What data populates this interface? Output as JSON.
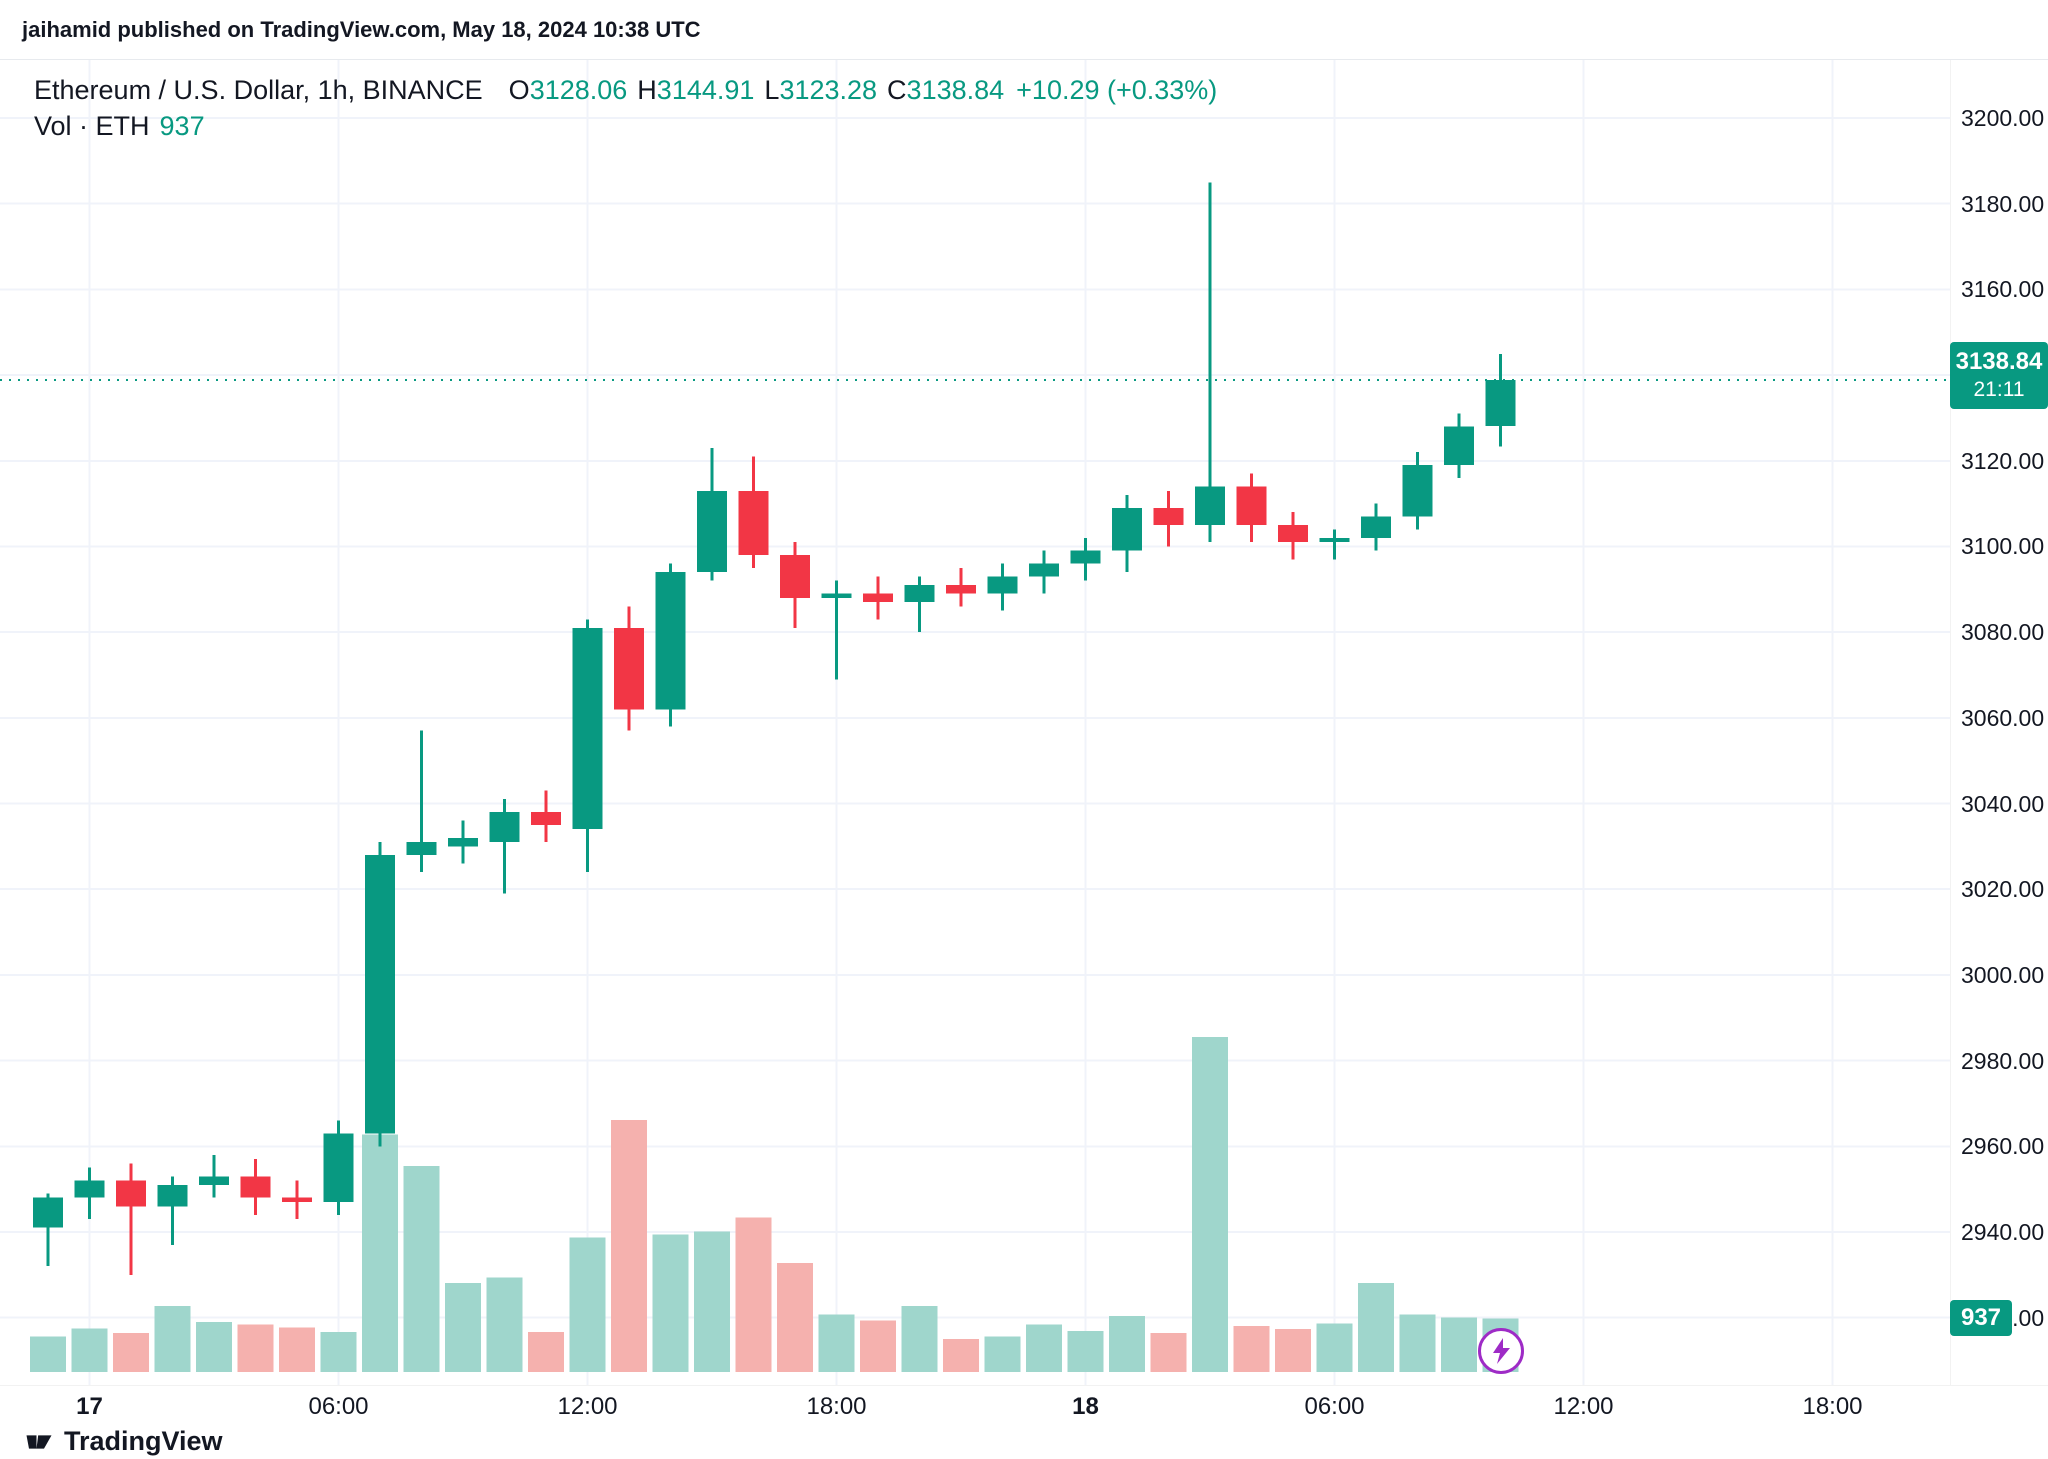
{
  "attribution": {
    "text": "jaihamid published on TradingView.com, May 18, 2024 10:38 UTC"
  },
  "legend": {
    "symbol": "Ethereum / U.S. Dollar, 1h, BINANCE",
    "o_label": "O",
    "o_value": "3128.06",
    "h_label": "H",
    "h_value": "3144.91",
    "l_label": "L",
    "l_value": "3123.28",
    "c_label": "C",
    "c_value": "3138.84",
    "change": "+10.29 (+0.33%)",
    "vol_label": "Vol · ETH",
    "vol_value": "937"
  },
  "price_badge": {
    "price": "3138.84",
    "countdown": "21:11"
  },
  "volume_badge": {
    "value": "937"
  },
  "footer": {
    "brand": "TradingView"
  },
  "colors": {
    "up": "#089981",
    "down": "#f23645",
    "vol_up": "#9fd6cc",
    "vol_down": "#f5b1ae",
    "grid": "#f0f3fa",
    "axis_text": "#131722",
    "badge_bg": "#089981",
    "flash": "#9e2bc6"
  },
  "chart_data": {
    "type": "candlestick",
    "title": "Ethereum / U.S. Dollar, 1h, BINANCE",
    "exchange": "BINANCE",
    "interval": "1h",
    "current_price": 3138.84,
    "current_volume": 937,
    "countdown": "21:11",
    "legend_position": "top-left",
    "grid": true,
    "y_axis": {
      "side": "right",
      "tick_step": 20,
      "ticks": [
        "3200.00",
        "3180.00",
        "3160.00",
        "3140.00",
        "3120.00",
        "3100.00",
        "3080.00",
        "3060.00",
        "3040.00",
        "3020.00",
        "3000.00",
        "2980.00",
        "2960.00",
        "2940.00",
        "2920.00"
      ]
    },
    "x_axis": {
      "ticks": [
        {
          "label": "17",
          "hour": 1,
          "bold": true
        },
        {
          "label": "06:00",
          "hour": 7,
          "bold": false
        },
        {
          "label": "12:00",
          "hour": 13,
          "bold": false
        },
        {
          "label": "18:00",
          "hour": 19,
          "bold": false
        },
        {
          "label": "18",
          "hour": 25,
          "bold": true
        },
        {
          "label": "06:00",
          "hour": 31,
          "bold": false
        },
        {
          "label": "12:00",
          "hour": 37,
          "bold": false
        },
        {
          "label": "18:00",
          "hour": 43,
          "bold": false
        }
      ]
    },
    "candles_format": [
      "open",
      "high",
      "low",
      "close",
      "volume"
    ],
    "candles": [
      [
        2941,
        2949,
        2932,
        2948,
        620
      ],
      [
        2948,
        2955,
        2943,
        2952,
        760
      ],
      [
        2952,
        2956,
        2930,
        2946,
        680
      ],
      [
        2946,
        2953,
        2937,
        2951,
        1150
      ],
      [
        2951,
        2958,
        2948,
        2953,
        870
      ],
      [
        2953,
        2957,
        2944,
        2948,
        830
      ],
      [
        2948,
        2952,
        2943,
        2947,
        780
      ],
      [
        2947,
        2966,
        2944,
        2963,
        700
      ],
      [
        2963,
        3031,
        2960,
        3028,
        4150
      ],
      [
        3028,
        3057,
        3024,
        3031,
        3600
      ],
      [
        3030,
        3036,
        3026,
        3032,
        1550
      ],
      [
        3031,
        3041,
        3019,
        3038,
        1650
      ],
      [
        3038,
        3043,
        3031,
        3035,
        700
      ],
      [
        3034,
        3083,
        3024,
        3081,
        2350
      ],
      [
        3081,
        3086,
        3057,
        3062,
        4400
      ],
      [
        3062,
        3096,
        3058,
        3094,
        2400
      ],
      [
        3094,
        3123,
        3092,
        3113,
        2450
      ],
      [
        3113,
        3121,
        3095,
        3098,
        2700
      ],
      [
        3098,
        3101,
        3081,
        3088,
        1900
      ],
      [
        3088,
        3092,
        3069,
        3089,
        1000
      ],
      [
        3089,
        3093,
        3083,
        3087,
        900
      ],
      [
        3087,
        3093,
        3080,
        3091,
        1150
      ],
      [
        3091,
        3095,
        3086,
        3089,
        580
      ],
      [
        3089,
        3096,
        3085,
        3093,
        620
      ],
      [
        3093,
        3099,
        3089,
        3096,
        830
      ],
      [
        3096,
        3102,
        3092,
        3099,
        720
      ],
      [
        3099,
        3112,
        3094,
        3109,
        980
      ],
      [
        3109,
        3113,
        3100,
        3105,
        680
      ],
      [
        3105,
        3185,
        3101,
        3114,
        5850
      ],
      [
        3114,
        3117,
        3101,
        3105,
        800
      ],
      [
        3105,
        3108,
        3097,
        3101,
        750
      ],
      [
        3101,
        3104,
        3097,
        3102,
        850
      ],
      [
        3102,
        3110,
        3099,
        3107,
        1550
      ],
      [
        3107,
        3122,
        3104,
        3119,
        1000
      ],
      [
        3119,
        3131,
        3116,
        3128,
        950
      ],
      [
        3128.06,
        3144.91,
        3123.28,
        3138.84,
        937
      ]
    ]
  }
}
